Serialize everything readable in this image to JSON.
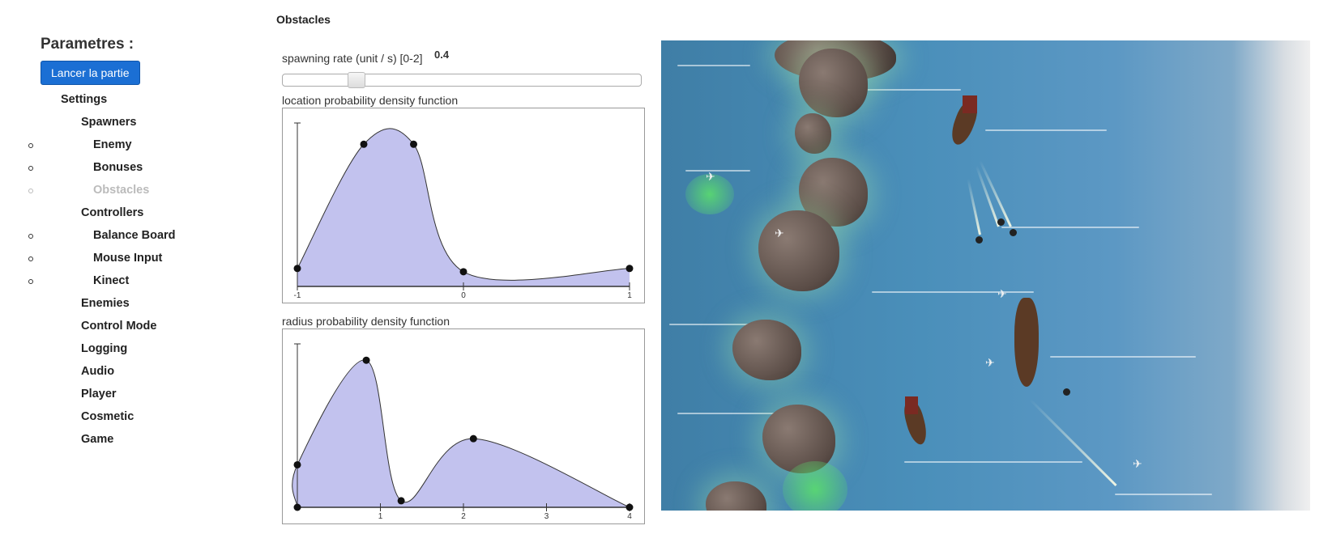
{
  "sidebar": {
    "title": "Parametres :",
    "launch_label": "Lancer la partie",
    "items": [
      {
        "label": "Settings",
        "level": 1,
        "disabled": false
      },
      {
        "label": "Spawners",
        "level": 2,
        "disabled": false
      },
      {
        "label": "Enemy",
        "level": 3,
        "disabled": false
      },
      {
        "label": "Bonuses",
        "level": 3,
        "disabled": false
      },
      {
        "label": "Obstacles",
        "level": 3,
        "disabled": true
      },
      {
        "label": "Controllers",
        "level": 2,
        "disabled": false
      },
      {
        "label": "Balance Board",
        "level": 3,
        "disabled": false
      },
      {
        "label": "Mouse Input",
        "level": 3,
        "disabled": false
      },
      {
        "label": "Kinect",
        "level": 3,
        "disabled": false
      },
      {
        "label": "Enemies",
        "level": 2,
        "disabled": false
      },
      {
        "label": "Control Mode",
        "level": 2,
        "disabled": false
      },
      {
        "label": "Logging",
        "level": 2,
        "disabled": false
      },
      {
        "label": "Audio",
        "level": 2,
        "disabled": false
      },
      {
        "label": "Player",
        "level": 2,
        "disabled": false
      },
      {
        "label": "Cosmetic",
        "level": 2,
        "disabled": false
      },
      {
        "label": "Game",
        "level": 2,
        "disabled": false
      }
    ]
  },
  "obstacles": {
    "title": "Obstacles",
    "rate_label": "spawning rate (unit / s) [0-2]",
    "rate_value": "0.4",
    "rate_fraction": 0.2,
    "location_label": "location probability density function",
    "radius_label": "radius probability density function"
  },
  "colors": {
    "fill": "#c2c2ee",
    "button": "#1b6fd4"
  },
  "chart_data": [
    {
      "type": "area",
      "title": "location probability density function",
      "xlim": [
        -1,
        1
      ],
      "ylim": [
        0,
        1
      ],
      "tick_labels": [
        "-1",
        "0",
        "1"
      ],
      "ticks": [
        -1,
        0,
        1
      ],
      "points": [
        [
          -1,
          0.11
        ],
        [
          -0.6,
          0.87
        ],
        [
          -0.3,
          0.87
        ],
        [
          0,
          0.09
        ],
        [
          1,
          0.11
        ]
      ]
    },
    {
      "type": "area",
      "title": "radius probability density function",
      "xlim": [
        0,
        4
      ],
      "ylim": [
        0,
        1
      ],
      "tick_labels": [
        "1",
        "2",
        "3",
        "4"
      ],
      "ticks": [
        1,
        2,
        3,
        4
      ],
      "points": [
        [
          0,
          0.0
        ],
        [
          0,
          0.26
        ],
        [
          0.83,
          0.9
        ],
        [
          1.25,
          0.04
        ],
        [
          2.12,
          0.42
        ],
        [
          4,
          0.0
        ]
      ]
    }
  ],
  "game": {
    "name": "game-viewport"
  }
}
